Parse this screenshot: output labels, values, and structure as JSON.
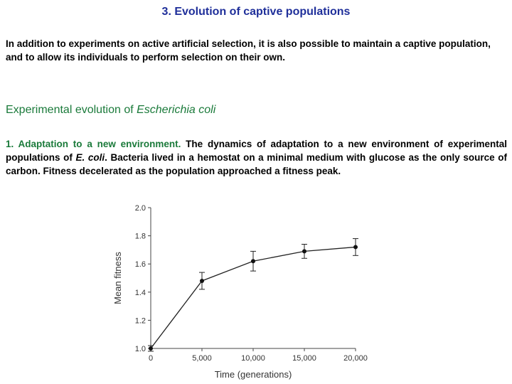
{
  "title": "3. Evolution of captive populations",
  "intro": "In addition to experiments on active artificial selection, it is also possible to maintain a captive population, and to allow its individuals to perform selection on their own.",
  "subheading": {
    "prefix": "Experimental evolution of ",
    "species": "Escherichia coli"
  },
  "paragraph": {
    "lead": "1. Adaptation to a new environment.",
    "text1": " The dynamics of adaptation to a new environment of experimental populations of ",
    "species": "E. coli",
    "text2": ". Bacteria lived in a hemostat on a minimal medium with glucose as the only source of carbon. Fitness decelerated as the population approached a fitness peak."
  },
  "colors": {
    "title": "#1f2f9a",
    "green": "#1a7a3a"
  },
  "chart_data": {
    "type": "line",
    "xlabel": "Time (generations)",
    "ylabel": "Mean fitness",
    "xlim": [
      0,
      20000
    ],
    "ylim": [
      1.0,
      2.0
    ],
    "x_ticks": [
      0,
      5000,
      10000,
      15000,
      20000
    ],
    "x_tick_labels": [
      "0",
      "5,000",
      "10,000",
      "15,000",
      "20,000"
    ],
    "y_ticks": [
      1.0,
      1.2,
      1.4,
      1.6,
      1.8,
      2.0
    ],
    "y_tick_labels": [
      "1.0",
      "1.2",
      "1.4",
      "1.6",
      "1.8",
      "2.0"
    ],
    "points": [
      {
        "x": 0,
        "y": 1.0,
        "err": 0.02
      },
      {
        "x": 5000,
        "y": 1.48,
        "err": 0.06
      },
      {
        "x": 10000,
        "y": 1.62,
        "err": 0.07
      },
      {
        "x": 15000,
        "y": 1.69,
        "err": 0.05
      },
      {
        "x": 20000,
        "y": 1.72,
        "err": 0.06
      }
    ],
    "grid": false
  }
}
